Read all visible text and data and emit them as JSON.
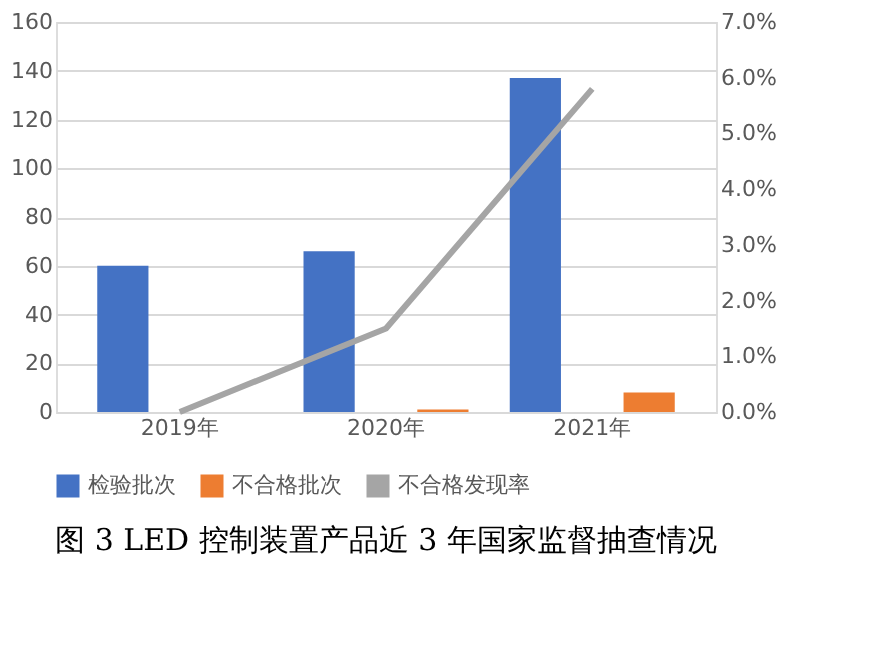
{
  "chart_data": {
    "type": "bar",
    "title": "图 3 LED 控制装置产品近 3 年国家监督抽查情况",
    "categories": [
      "2019年",
      "2020年",
      "2021年"
    ],
    "series": [
      {
        "name": "检验批次",
        "color": "#4472c4",
        "values": [
          60,
          66,
          137
        ]
      },
      {
        "name": "不合格批次",
        "color": "#ed7d31",
        "values": [
          0,
          1,
          8
        ]
      },
      {
        "name": "不合格发现率",
        "color": "#a5a5a5",
        "type": "line",
        "axis": "y2",
        "values": [
          0,
          1.5,
          5.8
        ]
      }
    ],
    "ylim": [
      0,
      160
    ],
    "yticks": [
      0,
      20,
      40,
      60,
      80,
      100,
      120,
      140,
      160
    ],
    "y2lim": [
      0,
      7
    ],
    "y2ticks": [
      {
        "value": 0,
        "label": "0.0%"
      },
      {
        "value": 1,
        "label": "1.0%"
      },
      {
        "value": 2,
        "label": "2.0%"
      },
      {
        "value": 3,
        "label": "3.0%"
      },
      {
        "value": 4,
        "label": "4.0%"
      },
      {
        "value": 5,
        "label": "5.0%"
      },
      {
        "value": 6,
        "label": "6.0%"
      },
      {
        "value": 7,
        "label": "7.0%"
      }
    ],
    "grid": "y",
    "legend": "bottom"
  }
}
